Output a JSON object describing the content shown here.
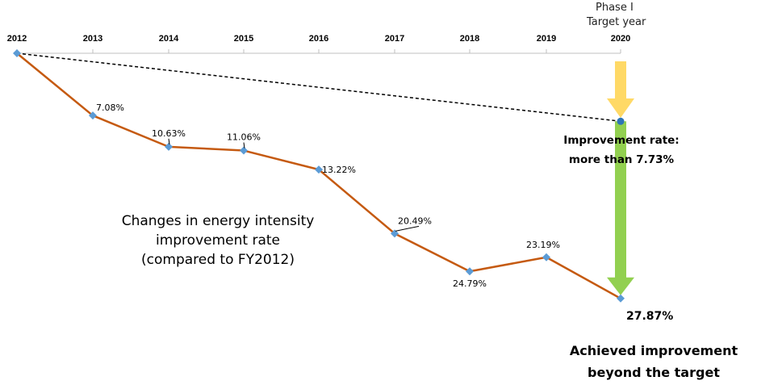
{
  "chart_data": {
    "type": "line",
    "title": "Changes in energy intensity improvement rate (compared to FY2012)",
    "title_lines": [
      "Changes in energy intensity",
      "improvement rate",
      "(compared to FY2012)"
    ],
    "categories": [
      "2012",
      "2013",
      "2014",
      "2015",
      "2016",
      "2017",
      "2018",
      "2019",
      "2020"
    ],
    "series": [
      {
        "values": [
          0,
          7.08,
          10.63,
          11.06,
          13.22,
          20.49,
          24.79,
          23.19,
          27.87
        ]
      }
    ],
    "data_labels": [
      "",
      "7.08%",
      "10.63%",
      "11.06%",
      "13.22%",
      "20.49%",
      "24.79%",
      "23.19%",
      "27.87%"
    ],
    "target": {
      "from_year": "2012",
      "to_year": "2020",
      "value": 7.73
    },
    "axis_position": "top",
    "y_direction": "down",
    "yunit": "%",
    "grid": false,
    "legend": "none",
    "colors": {
      "series": "#c55a11",
      "markers": "#5b9bd5",
      "target_line": "#000000",
      "target_point": "#2e75b6",
      "yellow_arrow": "#ffd966",
      "green_arrow": "#92d050",
      "axis": "#bfbfbf"
    }
  },
  "annotations": {
    "phase_line1": "Phase Ⅰ",
    "phase_line2": "Target year",
    "target_line1": "Improvement rate:",
    "target_line2": "more than 7.73%",
    "achieved_line1": "Achieved improvement",
    "achieved_line2": "beyond the target",
    "final_value": "27.87%"
  }
}
